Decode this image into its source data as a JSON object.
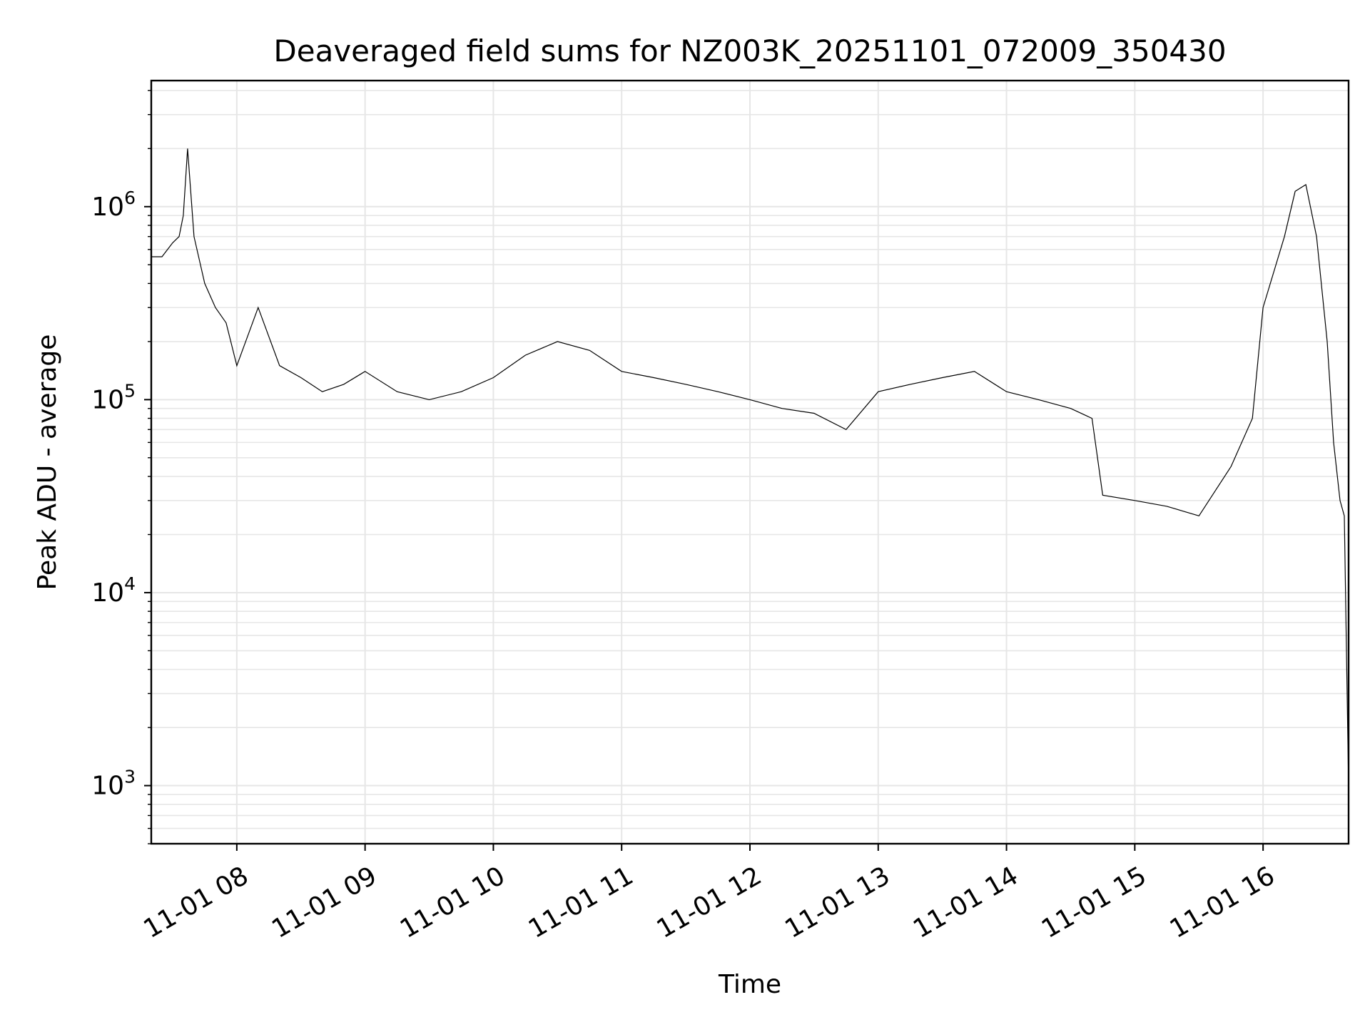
{
  "chart_data": {
    "type": "line",
    "title": "Deaveraged field sums for NZ003K_20251101_072009_350430",
    "xlabel": "Time",
    "ylabel": "Peak ADU - average",
    "yscale": "log",
    "ylim": [
      500,
      4500000
    ],
    "xlim": [
      "2025-11-01 07:20",
      "2025-11-01 16:40"
    ],
    "x_tick_labels": [
      "11-01 08",
      "11-01 09",
      "11-01 10",
      "11-01 11",
      "11-01 12",
      "11-01 13",
      "11-01 14",
      "11-01 15",
      "11-01 16"
    ],
    "x_tick_times": [
      "2025-11-01 08:00",
      "2025-11-01 09:00",
      "2025-11-01 10:00",
      "2025-11-01 11:00",
      "2025-11-01 12:00",
      "2025-11-01 13:00",
      "2025-11-01 14:00",
      "2025-11-01 15:00",
      "2025-11-01 16:00"
    ],
    "y_ticks": [
      {
        "value": 1000,
        "base": "10",
        "exp": "3"
      },
      {
        "value": 10000,
        "base": "10",
        "exp": "4"
      },
      {
        "value": 100000,
        "base": "10",
        "exp": "5"
      },
      {
        "value": 1000000,
        "base": "10",
        "exp": "6"
      }
    ],
    "grid": true,
    "line_color": "#000000",
    "grid_color": "#e6e6e6",
    "series": [
      {
        "x": [
          "2025-11-01 07:20",
          "2025-11-01 07:25",
          "2025-11-01 07:30",
          "2025-11-01 07:33",
          "2025-11-01 07:35",
          "2025-11-01 07:37",
          "2025-11-01 07:40",
          "2025-11-01 07:45",
          "2025-11-01 07:50",
          "2025-11-01 07:55",
          "2025-11-01 08:00",
          "2025-11-01 08:10",
          "2025-11-01 08:20",
          "2025-11-01 08:30",
          "2025-11-01 08:40",
          "2025-11-01 08:50",
          "2025-11-01 09:00",
          "2025-11-01 09:15",
          "2025-11-01 09:30",
          "2025-11-01 09:45",
          "2025-11-01 10:00",
          "2025-11-01 10:15",
          "2025-11-01 10:30",
          "2025-11-01 10:45",
          "2025-11-01 11:00",
          "2025-11-01 11:15",
          "2025-11-01 11:30",
          "2025-11-01 11:45",
          "2025-11-01 12:00",
          "2025-11-01 12:15",
          "2025-11-01 12:30",
          "2025-11-01 12:45",
          "2025-11-01 13:00",
          "2025-11-01 13:15",
          "2025-11-01 13:30",
          "2025-11-01 13:45",
          "2025-11-01 14:00",
          "2025-11-01 14:15",
          "2025-11-01 14:30",
          "2025-11-01 14:40",
          "2025-11-01 14:45",
          "2025-11-01 15:00",
          "2025-11-01 15:15",
          "2025-11-01 15:30",
          "2025-11-01 15:45",
          "2025-11-01 15:55",
          "2025-11-01 16:00",
          "2025-11-01 16:10",
          "2025-11-01 16:15",
          "2025-11-01 16:20",
          "2025-11-01 16:25",
          "2025-11-01 16:30",
          "2025-11-01 16:33",
          "2025-11-01 16:36",
          "2025-11-01 16:38",
          "2025-11-01 16:40"
        ],
        "y": [
          550000,
          550000,
          650000,
          700000,
          900000,
          2000000,
          700000,
          400000,
          300000,
          250000,
          150000,
          300000,
          150000,
          130000,
          110000,
          120000,
          140000,
          110000,
          100000,
          110000,
          130000,
          170000,
          200000,
          180000,
          140000,
          130000,
          120000,
          110000,
          100000,
          90000,
          85000,
          70000,
          110000,
          120000,
          130000,
          140000,
          110000,
          100000,
          90000,
          80000,
          32000,
          30000,
          28000,
          25000,
          45000,
          80000,
          300000,
          700000,
          1200000,
          1300000,
          700000,
          200000,
          60000,
          30000,
          25000,
          1000
        ]
      }
    ]
  }
}
